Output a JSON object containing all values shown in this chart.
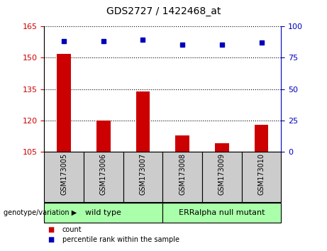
{
  "title": "GDS2727 / 1422468_at",
  "samples": [
    "GSM173005",
    "GSM173006",
    "GSM173007",
    "GSM173008",
    "GSM173009",
    "GSM173010"
  ],
  "counts": [
    152.0,
    120.0,
    134.0,
    113.0,
    109.0,
    118.0
  ],
  "percentiles": [
    88.0,
    88.0,
    89.5,
    85.5,
    85.5,
    87.0
  ],
  "ylim_left": [
    105,
    165
  ],
  "yticks_left": [
    105,
    120,
    135,
    150,
    165
  ],
  "ylim_right": [
    0,
    100
  ],
  "yticks_right": [
    0,
    25,
    50,
    75,
    100
  ],
  "bar_color": "#cc0000",
  "dot_color": "#0000bb",
  "groups": [
    {
      "label": "wild type",
      "indices": [
        0,
        1,
        2
      ],
      "color": "#aaffaa"
    },
    {
      "label": "ERRalpha null mutant",
      "indices": [
        3,
        4,
        5
      ],
      "color": "#aaffaa"
    }
  ],
  "group_label_prefix": "genotype/variation",
  "legend_items": [
    {
      "label": "count",
      "color": "#cc0000"
    },
    {
      "label": "percentile rank within the sample",
      "color": "#0000bb"
    }
  ],
  "tick_label_color_left": "#cc0000",
  "tick_label_color_right": "#0000bb",
  "background_xtick": "#cccccc"
}
